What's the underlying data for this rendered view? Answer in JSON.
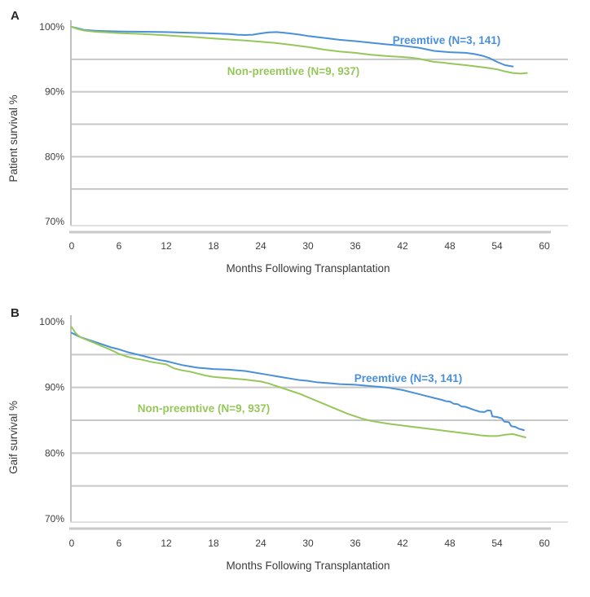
{
  "figure": {
    "background": "#ffffff",
    "text_color": "#3d3d3d",
    "panel_label_color": "#262626",
    "grid_color": "#c7c7c7",
    "spine_color": "#bfbfbf",
    "underline_color": "#c9c9c9"
  },
  "chart_data": [
    {
      "type": "line",
      "panel_label": "A",
      "title": "",
      "xlabel": "Months Following Transplantation",
      "ylabel": "Patient survival %",
      "xlim": [
        0,
        60
      ],
      "ylim": [
        70,
        100
      ],
      "xticks": [
        0,
        6,
        12,
        18,
        24,
        30,
        36,
        42,
        48,
        54,
        60
      ],
      "ytick_values": [
        100,
        90,
        80,
        70
      ],
      "ytick_labels": [
        "100%",
        "90%",
        "80%",
        "70%"
      ],
      "gridlines": [
        95,
        90,
        85,
        80,
        75
      ],
      "grid": "horizontal",
      "legend_position": "inline-labels",
      "series": [
        {
          "name": "Preemtive (N=3, 141)",
          "color": "#4a90d9",
          "points": [
            [
              0,
              100
            ],
            [
              0.7,
              99.8
            ],
            [
              1.5,
              99.55
            ],
            [
              3,
              99.4
            ],
            [
              6,
              99.3
            ],
            [
              9,
              99.25
            ],
            [
              12,
              99.2
            ],
            [
              15,
              99.1
            ],
            [
              18,
              99.0
            ],
            [
              20,
              98.9
            ],
            [
              21,
              98.8
            ],
            [
              22,
              98.75
            ],
            [
              23,
              98.8
            ],
            [
              24,
              99.0
            ],
            [
              25,
              99.15
            ],
            [
              26,
              99.2
            ],
            [
              27,
              99.1
            ],
            [
              28,
              98.95
            ],
            [
              29,
              98.8
            ],
            [
              30,
              98.6
            ],
            [
              32,
              98.3
            ],
            [
              34,
              98.0
            ],
            [
              36,
              97.8
            ],
            [
              38,
              97.55
            ],
            [
              40,
              97.3
            ],
            [
              42,
              97.1
            ],
            [
              44,
              96.8
            ],
            [
              46,
              96.3
            ],
            [
              48,
              96.1
            ],
            [
              50,
              96.0
            ],
            [
              51,
              95.85
            ],
            [
              52,
              95.6
            ],
            [
              53,
              95.2
            ],
            [
              54,
              94.6
            ],
            [
              55,
              94.1
            ],
            [
              56,
              93.9
            ]
          ]
        },
        {
          "name": "Non-preemtive (N=9, 937)",
          "color": "#96c75a",
          "points": [
            [
              0,
              100
            ],
            [
              0.7,
              99.7
            ],
            [
              1.5,
              99.45
            ],
            [
              3,
              99.25
            ],
            [
              6,
              99.05
            ],
            [
              9,
              98.9
            ],
            [
              12,
              98.7
            ],
            [
              14,
              98.55
            ],
            [
              16,
              98.4
            ],
            [
              18,
              98.2
            ],
            [
              20,
              98.05
            ],
            [
              22,
              97.9
            ],
            [
              24,
              97.7
            ],
            [
              26,
              97.5
            ],
            [
              28,
              97.2
            ],
            [
              30,
              96.9
            ],
            [
              32,
              96.5
            ],
            [
              34,
              96.2
            ],
            [
              36,
              96.0
            ],
            [
              38,
              95.7
            ],
            [
              40,
              95.5
            ],
            [
              42,
              95.35
            ],
            [
              43,
              95.25
            ],
            [
              44,
              95.1
            ],
            [
              45,
              94.85
            ],
            [
              46,
              94.6
            ],
            [
              47,
              94.5
            ],
            [
              48,
              94.35
            ],
            [
              50,
              94.1
            ],
            [
              52,
              93.8
            ],
            [
              53,
              93.65
            ],
            [
              54,
              93.45
            ],
            [
              55,
              93.15
            ],
            [
              56,
              92.9
            ],
            [
              57,
              92.8
            ],
            [
              57.8,
              92.9
            ]
          ]
        }
      ]
    },
    {
      "type": "line",
      "panel_label": "B",
      "title": "",
      "xlabel": "Months Following Transplantation",
      "ylabel": "Gaif survival %",
      "xlim": [
        0,
        60
      ],
      "ylim": [
        70,
        100
      ],
      "xticks": [
        0,
        6,
        12,
        18,
        24,
        30,
        36,
        42,
        48,
        54,
        60
      ],
      "ytick_values": [
        100,
        90,
        80,
        70
      ],
      "ytick_labels": [
        "100%",
        "90%",
        "80%",
        "70%"
      ],
      "gridlines": [
        95,
        90,
        85,
        80,
        75
      ],
      "grid": "horizontal",
      "legend_position": "inline-labels",
      "series": [
        {
          "name": "Preemtive (N=3, 141)",
          "color": "#4a90d9",
          "points": [
            [
              0,
              98.3
            ],
            [
              1,
              97.7
            ],
            [
              2,
              97.3
            ],
            [
              3,
              96.9
            ],
            [
              4,
              96.5
            ],
            [
              5,
              96.1
            ],
            [
              6,
              95.8
            ],
            [
              7,
              95.4
            ],
            [
              8,
              95.1
            ],
            [
              9,
              94.8
            ],
            [
              10,
              94.5
            ],
            [
              11,
              94.2
            ],
            [
              12,
              94.0
            ],
            [
              13,
              93.7
            ],
            [
              14,
              93.4
            ],
            [
              15,
              93.2
            ],
            [
              16,
              93.0
            ],
            [
              17,
              92.9
            ],
            [
              18,
              92.8
            ],
            [
              19,
              92.75
            ],
            [
              20,
              92.7
            ],
            [
              21,
              92.6
            ],
            [
              22,
              92.5
            ],
            [
              23,
              92.3
            ],
            [
              24,
              92.1
            ],
            [
              25,
              91.9
            ],
            [
              26,
              91.7
            ],
            [
              27,
              91.5
            ],
            [
              28,
              91.3
            ],
            [
              29,
              91.1
            ],
            [
              30,
              91.0
            ],
            [
              31,
              90.8
            ],
            [
              32,
              90.7
            ],
            [
              33,
              90.6
            ],
            [
              34,
              90.5
            ],
            [
              35,
              90.45
            ],
            [
              36,
              90.4
            ],
            [
              37,
              90.3
            ],
            [
              38,
              90.2
            ],
            [
              39,
              90.1
            ],
            [
              40,
              90.0
            ],
            [
              41,
              89.8
            ],
            [
              42,
              89.6
            ],
            [
              43,
              89.3
            ],
            [
              44,
              89.0
            ],
            [
              45,
              88.7
            ],
            [
              46,
              88.4
            ],
            [
              47,
              88.1
            ],
            [
              47.5,
              87.9
            ],
            [
              48,
              87.85
            ],
            [
              48.5,
              87.5
            ],
            [
              49,
              87.45
            ],
            [
              49.5,
              87.1
            ],
            [
              50,
              87.05
            ],
            [
              51,
              86.6
            ],
            [
              51.8,
              86.3
            ],
            [
              52.4,
              86.25
            ],
            [
              52.8,
              86.5
            ],
            [
              53.2,
              86.45
            ],
            [
              53.4,
              85.6
            ],
            [
              54,
              85.5
            ],
            [
              54.6,
              85.3
            ],
            [
              54.9,
              84.8
            ],
            [
              55.5,
              84.7
            ],
            [
              55.8,
              84.1
            ],
            [
              56.3,
              84.0
            ],
            [
              56.8,
              83.7
            ],
            [
              57.4,
              83.5
            ]
          ]
        },
        {
          "name": "Non-preemtive (N=9, 937)",
          "color": "#96c75a",
          "points": [
            [
              0,
              99.2
            ],
            [
              0.4,
              98.4
            ],
            [
              0.8,
              97.9
            ],
            [
              1.2,
              97.6
            ],
            [
              2,
              97.2
            ],
            [
              3,
              96.7
            ],
            [
              4,
              96.2
            ],
            [
              5,
              95.7
            ],
            [
              6,
              95.1
            ],
            [
              7,
              94.7
            ],
            [
              8,
              94.4
            ],
            [
              9,
              94.2
            ],
            [
              10,
              93.9
            ],
            [
              11,
              93.7
            ],
            [
              12,
              93.5
            ],
            [
              12.5,
              93.2
            ],
            [
              13,
              92.9
            ],
            [
              14,
              92.6
            ],
            [
              15,
              92.4
            ],
            [
              16,
              92.1
            ],
            [
              17,
              91.8
            ],
            [
              18,
              91.6
            ],
            [
              19,
              91.5
            ],
            [
              20,
              91.4
            ],
            [
              21,
              91.3
            ],
            [
              22,
              91.2
            ],
            [
              23,
              91.05
            ],
            [
              24,
              90.9
            ],
            [
              25,
              90.6
            ],
            [
              26,
              90.2
            ],
            [
              27,
              89.8
            ],
            [
              28,
              89.4
            ],
            [
              29,
              89.0
            ],
            [
              30,
              88.5
            ],
            [
              31,
              88.0
            ],
            [
              32,
              87.5
            ],
            [
              33,
              87.0
            ],
            [
              34,
              86.5
            ],
            [
              35,
              86.0
            ],
            [
              36,
              85.6
            ],
            [
              37,
              85.2
            ],
            [
              38,
              84.9
            ],
            [
              39,
              84.7
            ],
            [
              40,
              84.5
            ],
            [
              41,
              84.35
            ],
            [
              42,
              84.2
            ],
            [
              43,
              84.05
            ],
            [
              44,
              83.9
            ],
            [
              45,
              83.75
            ],
            [
              46,
              83.6
            ],
            [
              47,
              83.45
            ],
            [
              48,
              83.3
            ],
            [
              49,
              83.15
            ],
            [
              50,
              83.0
            ],
            [
              51,
              82.85
            ],
            [
              52,
              82.7
            ],
            [
              53,
              82.6
            ],
            [
              54,
              82.6
            ],
            [
              55,
              82.8
            ],
            [
              56,
              82.9
            ],
            [
              57.6,
              82.4
            ]
          ]
        }
      ]
    }
  ]
}
